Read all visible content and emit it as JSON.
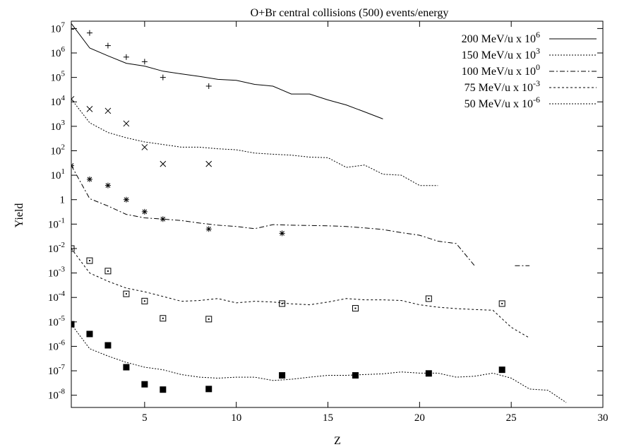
{
  "chart_data": {
    "type": "line",
    "title": "O+Br central collisions (500) events/energy",
    "xlabel": "Z",
    "ylabel": "Yield",
    "xlim": [
      1,
      30
    ],
    "ylim_log10": [
      -8.5,
      7.3
    ],
    "log_y": true,
    "grid": false,
    "legend_position": "top-right",
    "x_ticks": [
      {
        "v": 5,
        "label": "5"
      },
      {
        "v": 10,
        "label": "10"
      },
      {
        "v": 15,
        "label": "15"
      },
      {
        "v": 20,
        "label": "20"
      },
      {
        "v": 25,
        "label": "25"
      },
      {
        "v": 30,
        "label": "30"
      }
    ],
    "y_ticks": [
      {
        "e": 7,
        "label": "10",
        "sup": "7"
      },
      {
        "e": 6,
        "label": "10",
        "sup": "6"
      },
      {
        "e": 5,
        "label": "10",
        "sup": "5"
      },
      {
        "e": 4,
        "label": "10",
        "sup": "4"
      },
      {
        "e": 3,
        "label": "10",
        "sup": "3"
      },
      {
        "e": 2,
        "label": "10",
        "sup": "2"
      },
      {
        "e": 1,
        "label": "10",
        "sup": "1"
      },
      {
        "e": 0,
        "label": "1",
        "sup": ""
      },
      {
        "e": -1,
        "label": "10",
        "sup": "-1"
      },
      {
        "e": -2,
        "label": "10",
        "sup": "-2"
      },
      {
        "e": -3,
        "label": "10",
        "sup": "-3"
      },
      {
        "e": -4,
        "label": "10",
        "sup": "-4"
      },
      {
        "e": -5,
        "label": "10",
        "sup": "-5"
      },
      {
        "e": -6,
        "label": "10",
        "sup": "-6"
      },
      {
        "e": -7,
        "label": "10",
        "sup": "-7"
      },
      {
        "e": -8,
        "label": "10",
        "sup": "-8"
      }
    ],
    "series": [
      {
        "name": "200 MeV/u x 10",
        "sup": "6",
        "dash": "",
        "marker": "plus",
        "line": [
          [
            1,
            16000000.0
          ],
          [
            2,
            1600000.0
          ],
          [
            3,
            760000.0
          ],
          [
            4,
            380000.0
          ],
          [
            5,
            290000.0
          ],
          [
            6,
            180000.0
          ],
          [
            7,
            140000.0
          ],
          [
            8,
            110000.0
          ],
          [
            9,
            83000.0
          ],
          [
            10,
            76000.0
          ],
          [
            11,
            52000.0
          ],
          [
            12,
            44000.0
          ],
          [
            13,
            21000.0
          ],
          [
            14,
            21000.0
          ],
          [
            15,
            12000.0
          ],
          [
            16,
            7500.0
          ],
          [
            17,
            3900.0
          ],
          [
            18,
            2000.0
          ]
        ],
        "points": [
          [
            1,
            9400000.0
          ],
          [
            2,
            6600000.0
          ],
          [
            3,
            2000000.0
          ],
          [
            4,
            680000.0
          ],
          [
            5,
            440000.0
          ],
          [
            6,
            100000.0
          ],
          [
            8.5,
            44000.0
          ]
        ]
      },
      {
        "name": "150 MeV/u x 10",
        "sup": "3",
        "dash": "2,2",
        "marker": "x",
        "line": [
          [
            1,
            13000.0
          ],
          [
            2,
            1400.0
          ],
          [
            3,
            560.0
          ],
          [
            4,
            340.0
          ],
          [
            5,
            230.0
          ],
          [
            6,
            180.0
          ],
          [
            7,
            140.0
          ],
          [
            8,
            140.0
          ],
          [
            9,
            120.0
          ],
          [
            10,
            110.0
          ],
          [
            11,
            80.0
          ],
          [
            12,
            72.0
          ],
          [
            13,
            66.0
          ],
          [
            14,
            55.0
          ],
          [
            15,
            52.0
          ],
          [
            16,
            21.0
          ],
          [
            17,
            26.0
          ],
          [
            18,
            11.0
          ],
          [
            19,
            10.0
          ],
          [
            20,
            3.8
          ],
          [
            21,
            3.8
          ]
        ],
        "points": [
          [
            1,
            13000.0
          ],
          [
            2,
            5100.0
          ],
          [
            3,
            4300.0
          ],
          [
            4,
            1300.0
          ],
          [
            5,
            140.0
          ],
          [
            6,
            29.0
          ],
          [
            8.5,
            29.0
          ]
        ]
      },
      {
        "name": "100 MeV/u x 10",
        "sup": "0",
        "dash": "7,3,2,3",
        "marker": "star",
        "line": [
          [
            1,
            25.0
          ],
          [
            2,
            1.1
          ],
          [
            3,
            0.55
          ],
          [
            4,
            0.25
          ],
          [
            5,
            0.18
          ],
          [
            6,
            0.16
          ],
          [
            7,
            0.14
          ],
          [
            8,
            0.11
          ],
          [
            9,
            0.09
          ],
          [
            10,
            0.08
          ],
          [
            11,
            0.065
          ],
          [
            12,
            0.095
          ],
          [
            13,
            0.09
          ],
          [
            14,
            0.088
          ],
          [
            15,
            0.085
          ],
          [
            16,
            0.08
          ],
          [
            17,
            0.07
          ],
          [
            18,
            0.06
          ],
          [
            19,
            0.045
          ],
          [
            20,
            0.035
          ],
          [
            21,
            0.02
          ],
          [
            22,
            0.016
          ],
          [
            23,
            0.002
          ]
        ],
        "line2": [
          [
            25.2,
            0.002
          ],
          [
            26,
            0.002
          ]
        ],
        "points": [
          [
            1,
            25.0
          ],
          [
            2,
            6.8
          ],
          [
            3,
            3.8
          ],
          [
            4,
            1.0
          ],
          [
            5,
            0.32
          ],
          [
            6,
            0.16
          ],
          [
            8.5,
            0.063
          ],
          [
            12.5,
            0.042
          ]
        ]
      },
      {
        "name": "75 MeV/u x 10",
        "sup": "-3",
        "dash": "3,3",
        "marker": "square",
        "line": [
          [
            1,
            0.01
          ],
          [
            2,
            0.001
          ],
          [
            3,
            0.00046
          ],
          [
            4,
            0.00024
          ],
          [
            5,
            0.00017
          ],
          [
            6,
            0.00011
          ],
          [
            7,
            7e-05
          ],
          [
            8,
            7.5e-05
          ],
          [
            9,
            9e-05
          ],
          [
            10,
            6e-05
          ],
          [
            11,
            7e-05
          ],
          [
            12,
            6.5e-05
          ],
          [
            13,
            5.5e-05
          ],
          [
            14,
            5e-05
          ],
          [
            15,
            6.5e-05
          ],
          [
            16,
            9e-05
          ],
          [
            17,
            8e-05
          ],
          [
            18,
            8e-05
          ],
          [
            19,
            7.5e-05
          ],
          [
            20,
            5e-05
          ],
          [
            21,
            4e-05
          ],
          [
            22,
            3.5e-05
          ],
          [
            23,
            3.2e-05
          ],
          [
            24,
            3e-05
          ],
          [
            25,
            6e-06
          ],
          [
            26,
            2.2e-06
          ]
        ],
        "points": [
          [
            1,
            0.01
          ],
          [
            2,
            0.0032
          ],
          [
            3,
            0.0012
          ],
          [
            4,
            0.00014
          ],
          [
            5,
            7.1e-05
          ],
          [
            6,
            1.4e-05
          ],
          [
            8.5,
            1.3e-05
          ],
          [
            12.5,
            5.6e-05
          ],
          [
            16.5,
            3.6e-05
          ],
          [
            20.5,
            8.9e-05
          ],
          [
            24.5,
            5.6e-05
          ]
        ]
      },
      {
        "name": "50 MeV/u x 10",
        "sup": "-6",
        "dash": "2,2",
        "marker": "filled-square",
        "line": [
          [
            1,
            8e-06
          ],
          [
            2,
            8e-07
          ],
          [
            3,
            4e-07
          ],
          [
            4,
            2.2e-07
          ],
          [
            5,
            1.4e-07
          ],
          [
            6,
            1.1e-07
          ],
          [
            7,
            7e-08
          ],
          [
            8,
            5.5e-08
          ],
          [
            9,
            5e-08
          ],
          [
            10,
            5.5e-08
          ],
          [
            11,
            5.5e-08
          ],
          [
            12,
            4e-08
          ],
          [
            13,
            4.5e-08
          ],
          [
            14,
            5.5e-08
          ],
          [
            15,
            6.5e-08
          ],
          [
            16,
            6.5e-08
          ],
          [
            17,
            7e-08
          ],
          [
            18,
            7.5e-08
          ],
          [
            19,
            9e-08
          ],
          [
            20,
            8e-08
          ],
          [
            21,
            8e-08
          ],
          [
            22,
            5.5e-08
          ],
          [
            23,
            6e-08
          ],
          [
            24,
            8e-08
          ],
          [
            25,
            5e-08
          ],
          [
            26,
            1.8e-08
          ],
          [
            27,
            1.6e-08
          ],
          [
            28,
            5e-09
          ]
        ],
        "points": [
          [
            1,
            8e-06
          ],
          [
            2,
            3.2e-06
          ],
          [
            3,
            1.1e-06
          ],
          [
            4,
            1.4e-07
          ],
          [
            5,
            2.8e-08
          ],
          [
            6,
            1.7e-08
          ],
          [
            8.5,
            1.8e-08
          ],
          [
            12.5,
            6.5e-08
          ],
          [
            16.5,
            6.5e-08
          ],
          [
            20.5,
            7.8e-08
          ],
          [
            24.5,
            1.1e-07
          ]
        ]
      }
    ]
  }
}
